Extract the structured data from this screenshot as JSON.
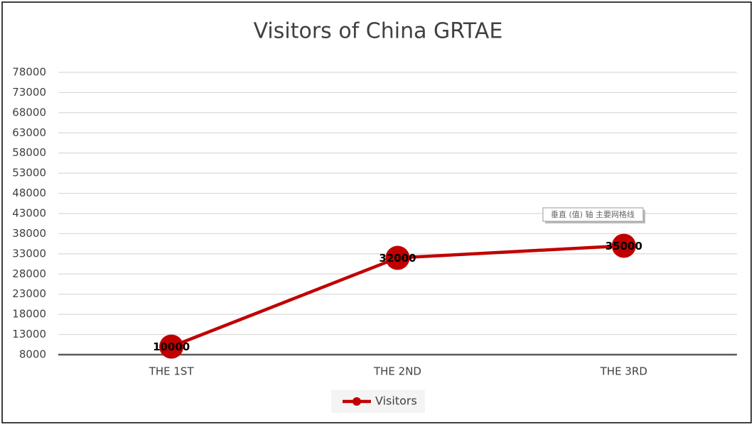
{
  "chart_data": {
    "type": "line",
    "title": "Visitors of China GRTAE",
    "categories": [
      "THE 1ST",
      "THE 2ND",
      "THE 3RD"
    ],
    "series": [
      {
        "name": "Visitors",
        "color": "#c00000",
        "values": [
          10000,
          32000,
          35000
        ]
      }
    ],
    "ylim": [
      8000,
      78000
    ],
    "yticks": [
      8000,
      13000,
      18000,
      23000,
      28000,
      33000,
      38000,
      43000,
      48000,
      53000,
      58000,
      63000,
      68000,
      73000,
      78000
    ],
    "grid": true,
    "legend": "bottom",
    "tooltip": "垂直 (值) 轴 主要网格线"
  }
}
